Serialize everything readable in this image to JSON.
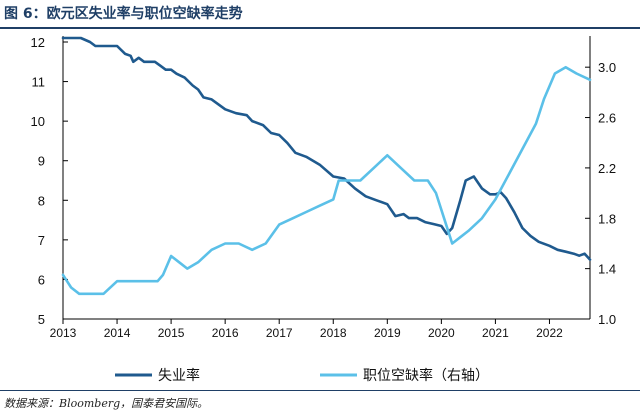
{
  "header": {
    "title": "图 6：欧元区失业率与职位空缺率走势"
  },
  "footer": {
    "source": "数据来源：Bloomberg，国泰君安国际。"
  },
  "colors": {
    "dark_series": "#1f5a8e",
    "light_series": "#5bc0e8",
    "axis": "#000000",
    "title": "#1f3f66"
  },
  "chart_data": {
    "type": "line",
    "x_ticks": [
      "2013",
      "2014",
      "2015",
      "2016",
      "2017",
      "2018",
      "2019",
      "2020",
      "2021",
      "2022"
    ],
    "xlim": [
      2013.0,
      2022.75
    ],
    "y_left": {
      "lim": [
        5,
        12
      ],
      "ticks": [
        "5",
        "6",
        "7",
        "8",
        "9",
        "10",
        "11",
        "12"
      ]
    },
    "y_right": {
      "lim": [
        1.0,
        3.2
      ],
      "ticks": [
        "1.0",
        "1.4",
        "1.8",
        "2.2",
        "2.6",
        "3.0"
      ]
    },
    "grid": false,
    "legend": "bottom",
    "series": [
      {
        "name": "失业率",
        "axis": "left",
        "color": "#1f5a8e",
        "points": [
          [
            2013.0,
            12.1
          ],
          [
            2013.33,
            12.1
          ],
          [
            2013.5,
            12.0
          ],
          [
            2013.6,
            11.9
          ],
          [
            2014.0,
            11.9
          ],
          [
            2014.15,
            11.7
          ],
          [
            2014.25,
            11.65
          ],
          [
            2014.3,
            11.5
          ],
          [
            2014.4,
            11.6
          ],
          [
            2014.5,
            11.5
          ],
          [
            2014.7,
            11.5
          ],
          [
            2014.8,
            11.4
          ],
          [
            2014.9,
            11.3
          ],
          [
            2015.0,
            11.3
          ],
          [
            2015.1,
            11.2
          ],
          [
            2015.25,
            11.1
          ],
          [
            2015.4,
            10.9
          ],
          [
            2015.5,
            10.8
          ],
          [
            2015.6,
            10.6
          ],
          [
            2015.75,
            10.55
          ],
          [
            2016.0,
            10.3
          ],
          [
            2016.2,
            10.2
          ],
          [
            2016.4,
            10.15
          ],
          [
            2016.5,
            10.0
          ],
          [
            2016.7,
            9.9
          ],
          [
            2016.85,
            9.7
          ],
          [
            2017.0,
            9.65
          ],
          [
            2017.15,
            9.45
          ],
          [
            2017.3,
            9.2
          ],
          [
            2017.5,
            9.1
          ],
          [
            2017.75,
            8.9
          ],
          [
            2018.0,
            8.6
          ],
          [
            2018.2,
            8.55
          ],
          [
            2018.4,
            8.3
          ],
          [
            2018.6,
            8.1
          ],
          [
            2018.8,
            8.0
          ],
          [
            2019.0,
            7.9
          ],
          [
            2019.15,
            7.6
          ],
          [
            2019.3,
            7.65
          ],
          [
            2019.4,
            7.55
          ],
          [
            2019.55,
            7.55
          ],
          [
            2019.7,
            7.45
          ],
          [
            2019.85,
            7.4
          ],
          [
            2020.0,
            7.35
          ],
          [
            2020.1,
            7.15
          ],
          [
            2020.2,
            7.3
          ],
          [
            2020.35,
            8.0
          ],
          [
            2020.45,
            8.5
          ],
          [
            2020.6,
            8.6
          ],
          [
            2020.75,
            8.3
          ],
          [
            2020.9,
            8.15
          ],
          [
            2021.0,
            8.15
          ],
          [
            2021.1,
            8.2
          ],
          [
            2021.2,
            8.05
          ],
          [
            2021.35,
            7.7
          ],
          [
            2021.5,
            7.3
          ],
          [
            2021.65,
            7.1
          ],
          [
            2021.8,
            6.95
          ],
          [
            2022.0,
            6.85
          ],
          [
            2022.15,
            6.75
          ],
          [
            2022.3,
            6.7
          ],
          [
            2022.45,
            6.65
          ],
          [
            2022.55,
            6.6
          ],
          [
            2022.65,
            6.65
          ],
          [
            2022.75,
            6.5
          ]
        ]
      },
      {
        "name": "职位空缺率（右轴）",
        "axis": "right",
        "color": "#5bc0e8",
        "points": [
          [
            2013.0,
            1.35
          ],
          [
            2013.15,
            1.25
          ],
          [
            2013.3,
            1.2
          ],
          [
            2013.5,
            1.2
          ],
          [
            2013.75,
            1.2
          ],
          [
            2014.0,
            1.3
          ],
          [
            2014.25,
            1.3
          ],
          [
            2014.5,
            1.3
          ],
          [
            2014.75,
            1.3
          ],
          [
            2014.85,
            1.35
          ],
          [
            2015.0,
            1.5
          ],
          [
            2015.15,
            1.45
          ],
          [
            2015.3,
            1.4
          ],
          [
            2015.5,
            1.45
          ],
          [
            2015.75,
            1.55
          ],
          [
            2016.0,
            1.6
          ],
          [
            2016.25,
            1.6
          ],
          [
            2016.5,
            1.55
          ],
          [
            2016.75,
            1.6
          ],
          [
            2017.0,
            1.75
          ],
          [
            2017.25,
            1.8
          ],
          [
            2017.5,
            1.85
          ],
          [
            2017.75,
            1.9
          ],
          [
            2018.0,
            1.95
          ],
          [
            2018.1,
            2.1
          ],
          [
            2018.25,
            2.1
          ],
          [
            2018.5,
            2.1
          ],
          [
            2018.75,
            2.2
          ],
          [
            2019.0,
            2.3
          ],
          [
            2019.25,
            2.2
          ],
          [
            2019.5,
            2.1
          ],
          [
            2019.75,
            2.1
          ],
          [
            2019.9,
            2.0
          ],
          [
            2020.05,
            1.8
          ],
          [
            2020.2,
            1.6
          ],
          [
            2020.35,
            1.65
          ],
          [
            2020.5,
            1.7
          ],
          [
            2020.75,
            1.8
          ],
          [
            2021.0,
            1.95
          ],
          [
            2021.25,
            2.15
          ],
          [
            2021.5,
            2.35
          ],
          [
            2021.75,
            2.55
          ],
          [
            2021.9,
            2.75
          ],
          [
            2022.0,
            2.85
          ],
          [
            2022.1,
            2.95
          ],
          [
            2022.3,
            3.0
          ],
          [
            2022.5,
            2.95
          ],
          [
            2022.75,
            2.9
          ]
        ]
      }
    ]
  }
}
